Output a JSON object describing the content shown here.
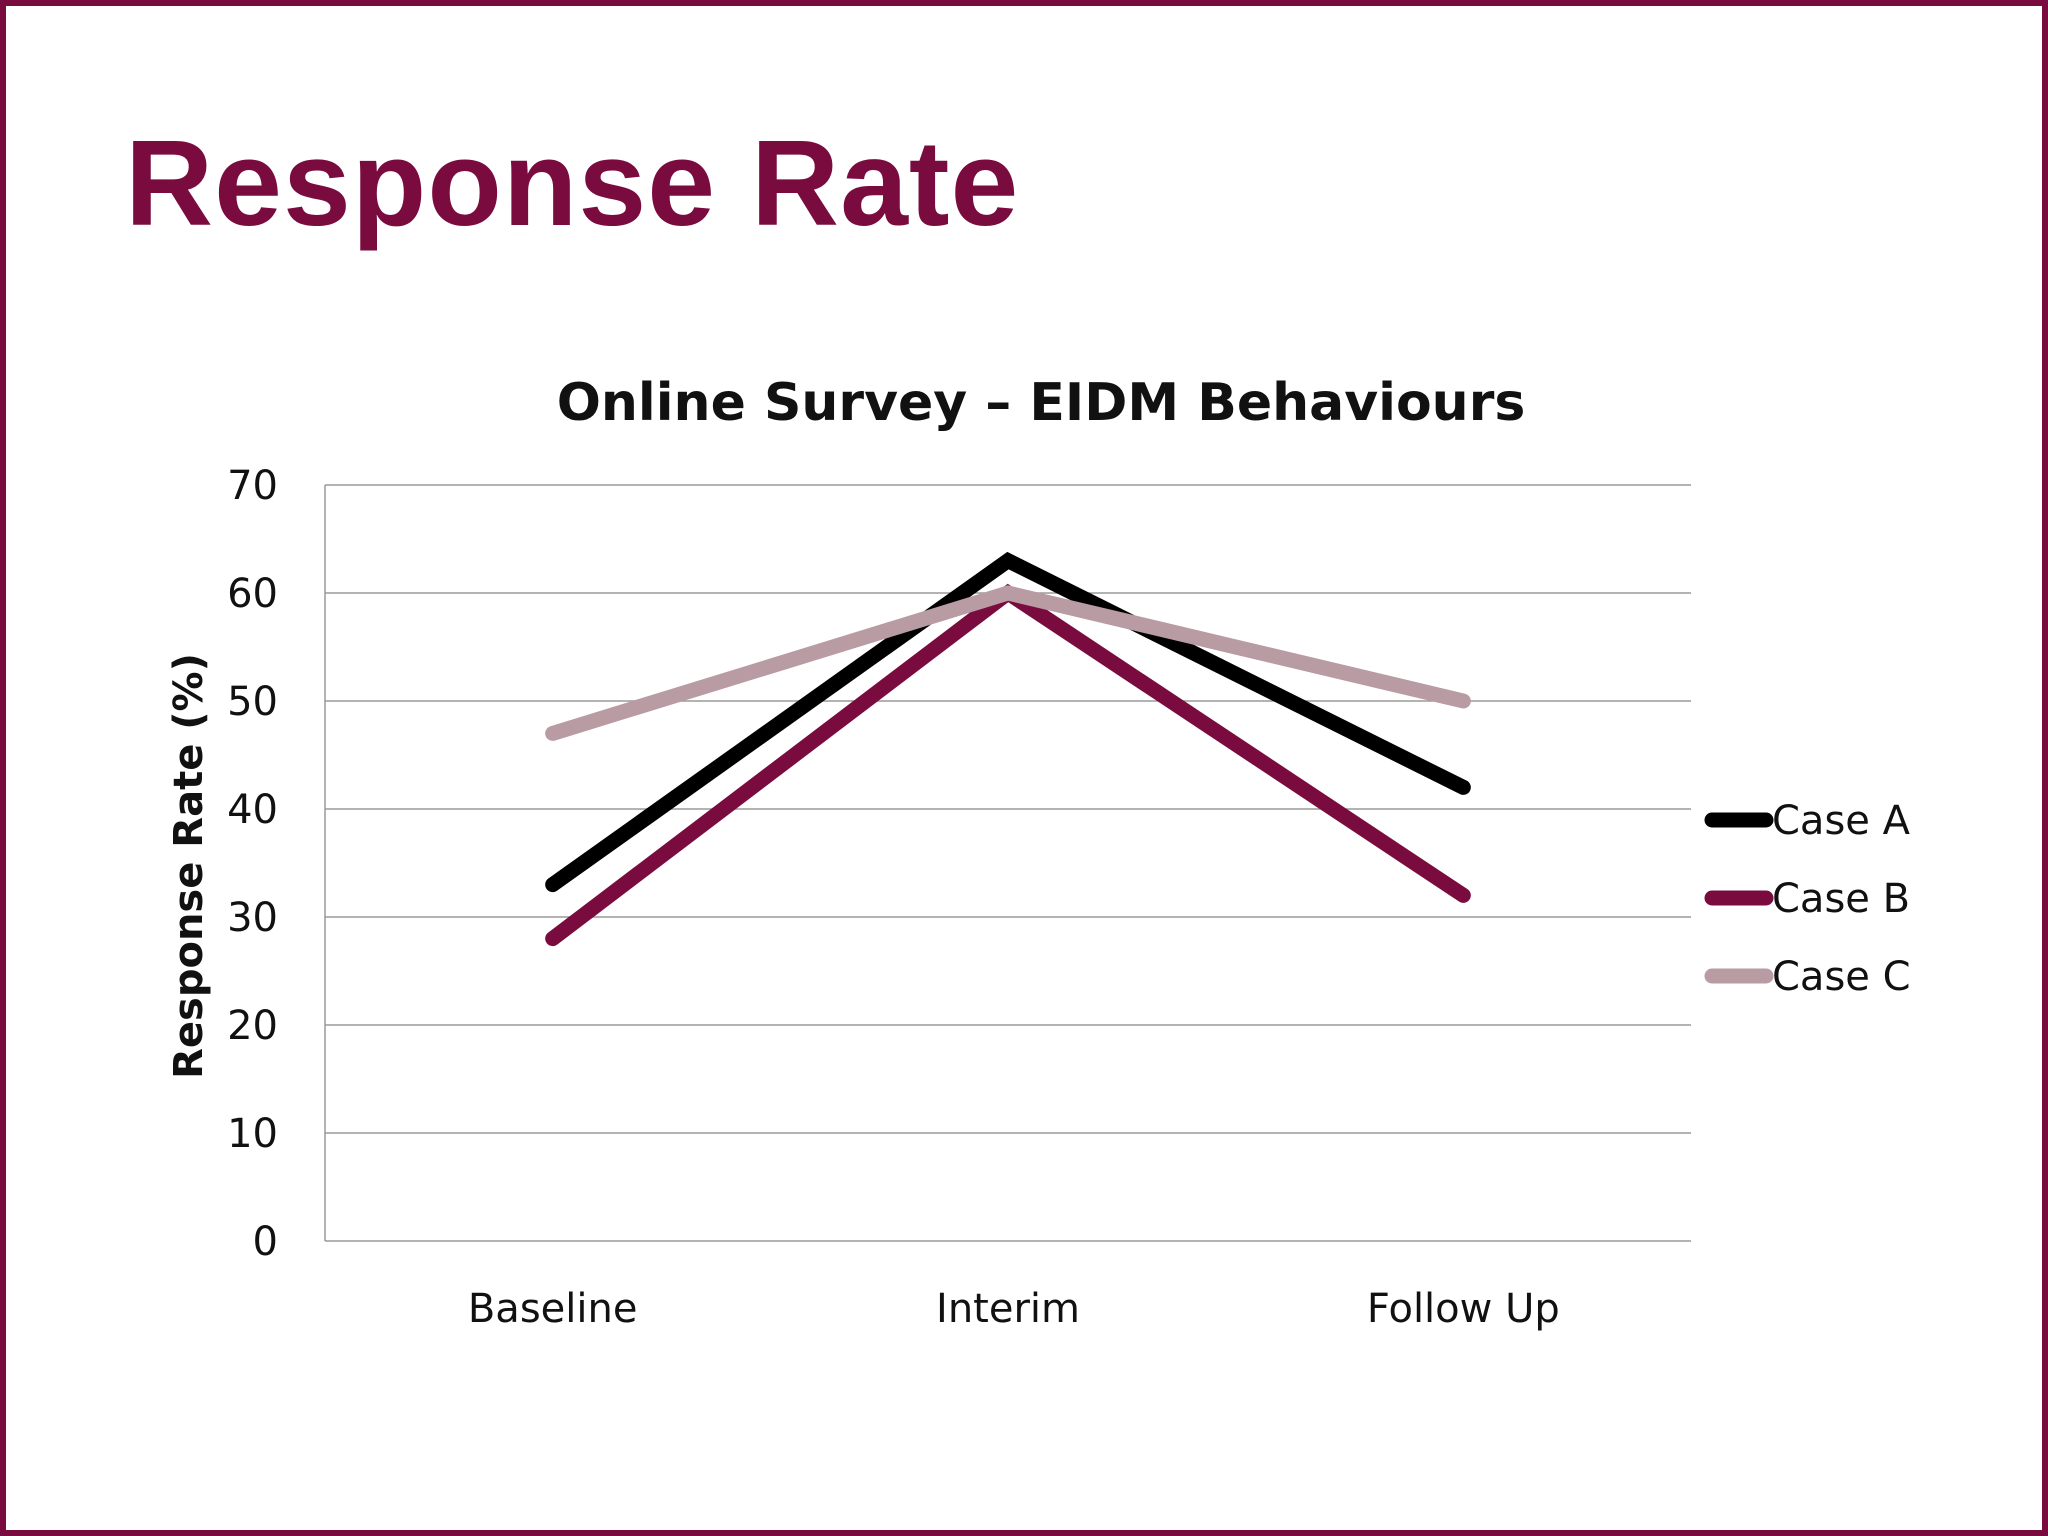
{
  "slide": {
    "title": "Response Rate",
    "accent_color": "#7a0b3f"
  },
  "chart_data": {
    "type": "line",
    "title": "Online Survey – EIDM Behaviours",
    "xlabel": "",
    "ylabel": "Response Rate (%)",
    "categories": [
      "Baseline",
      "Interim",
      "Follow Up"
    ],
    "ylim": [
      0,
      70
    ],
    "yticks": [
      0,
      10,
      20,
      30,
      40,
      50,
      60,
      70
    ],
    "grid": true,
    "legend_position": "right",
    "series": [
      {
        "name": "Case A",
        "values": [
          33,
          63,
          42
        ],
        "color": "#000000"
      },
      {
        "name": "Case B",
        "values": [
          28,
          60,
          32
        ],
        "color": "#7a0b3f"
      },
      {
        "name": "Case C",
        "values": [
          47,
          60,
          50
        ],
        "color": "#b89ba3"
      }
    ]
  }
}
